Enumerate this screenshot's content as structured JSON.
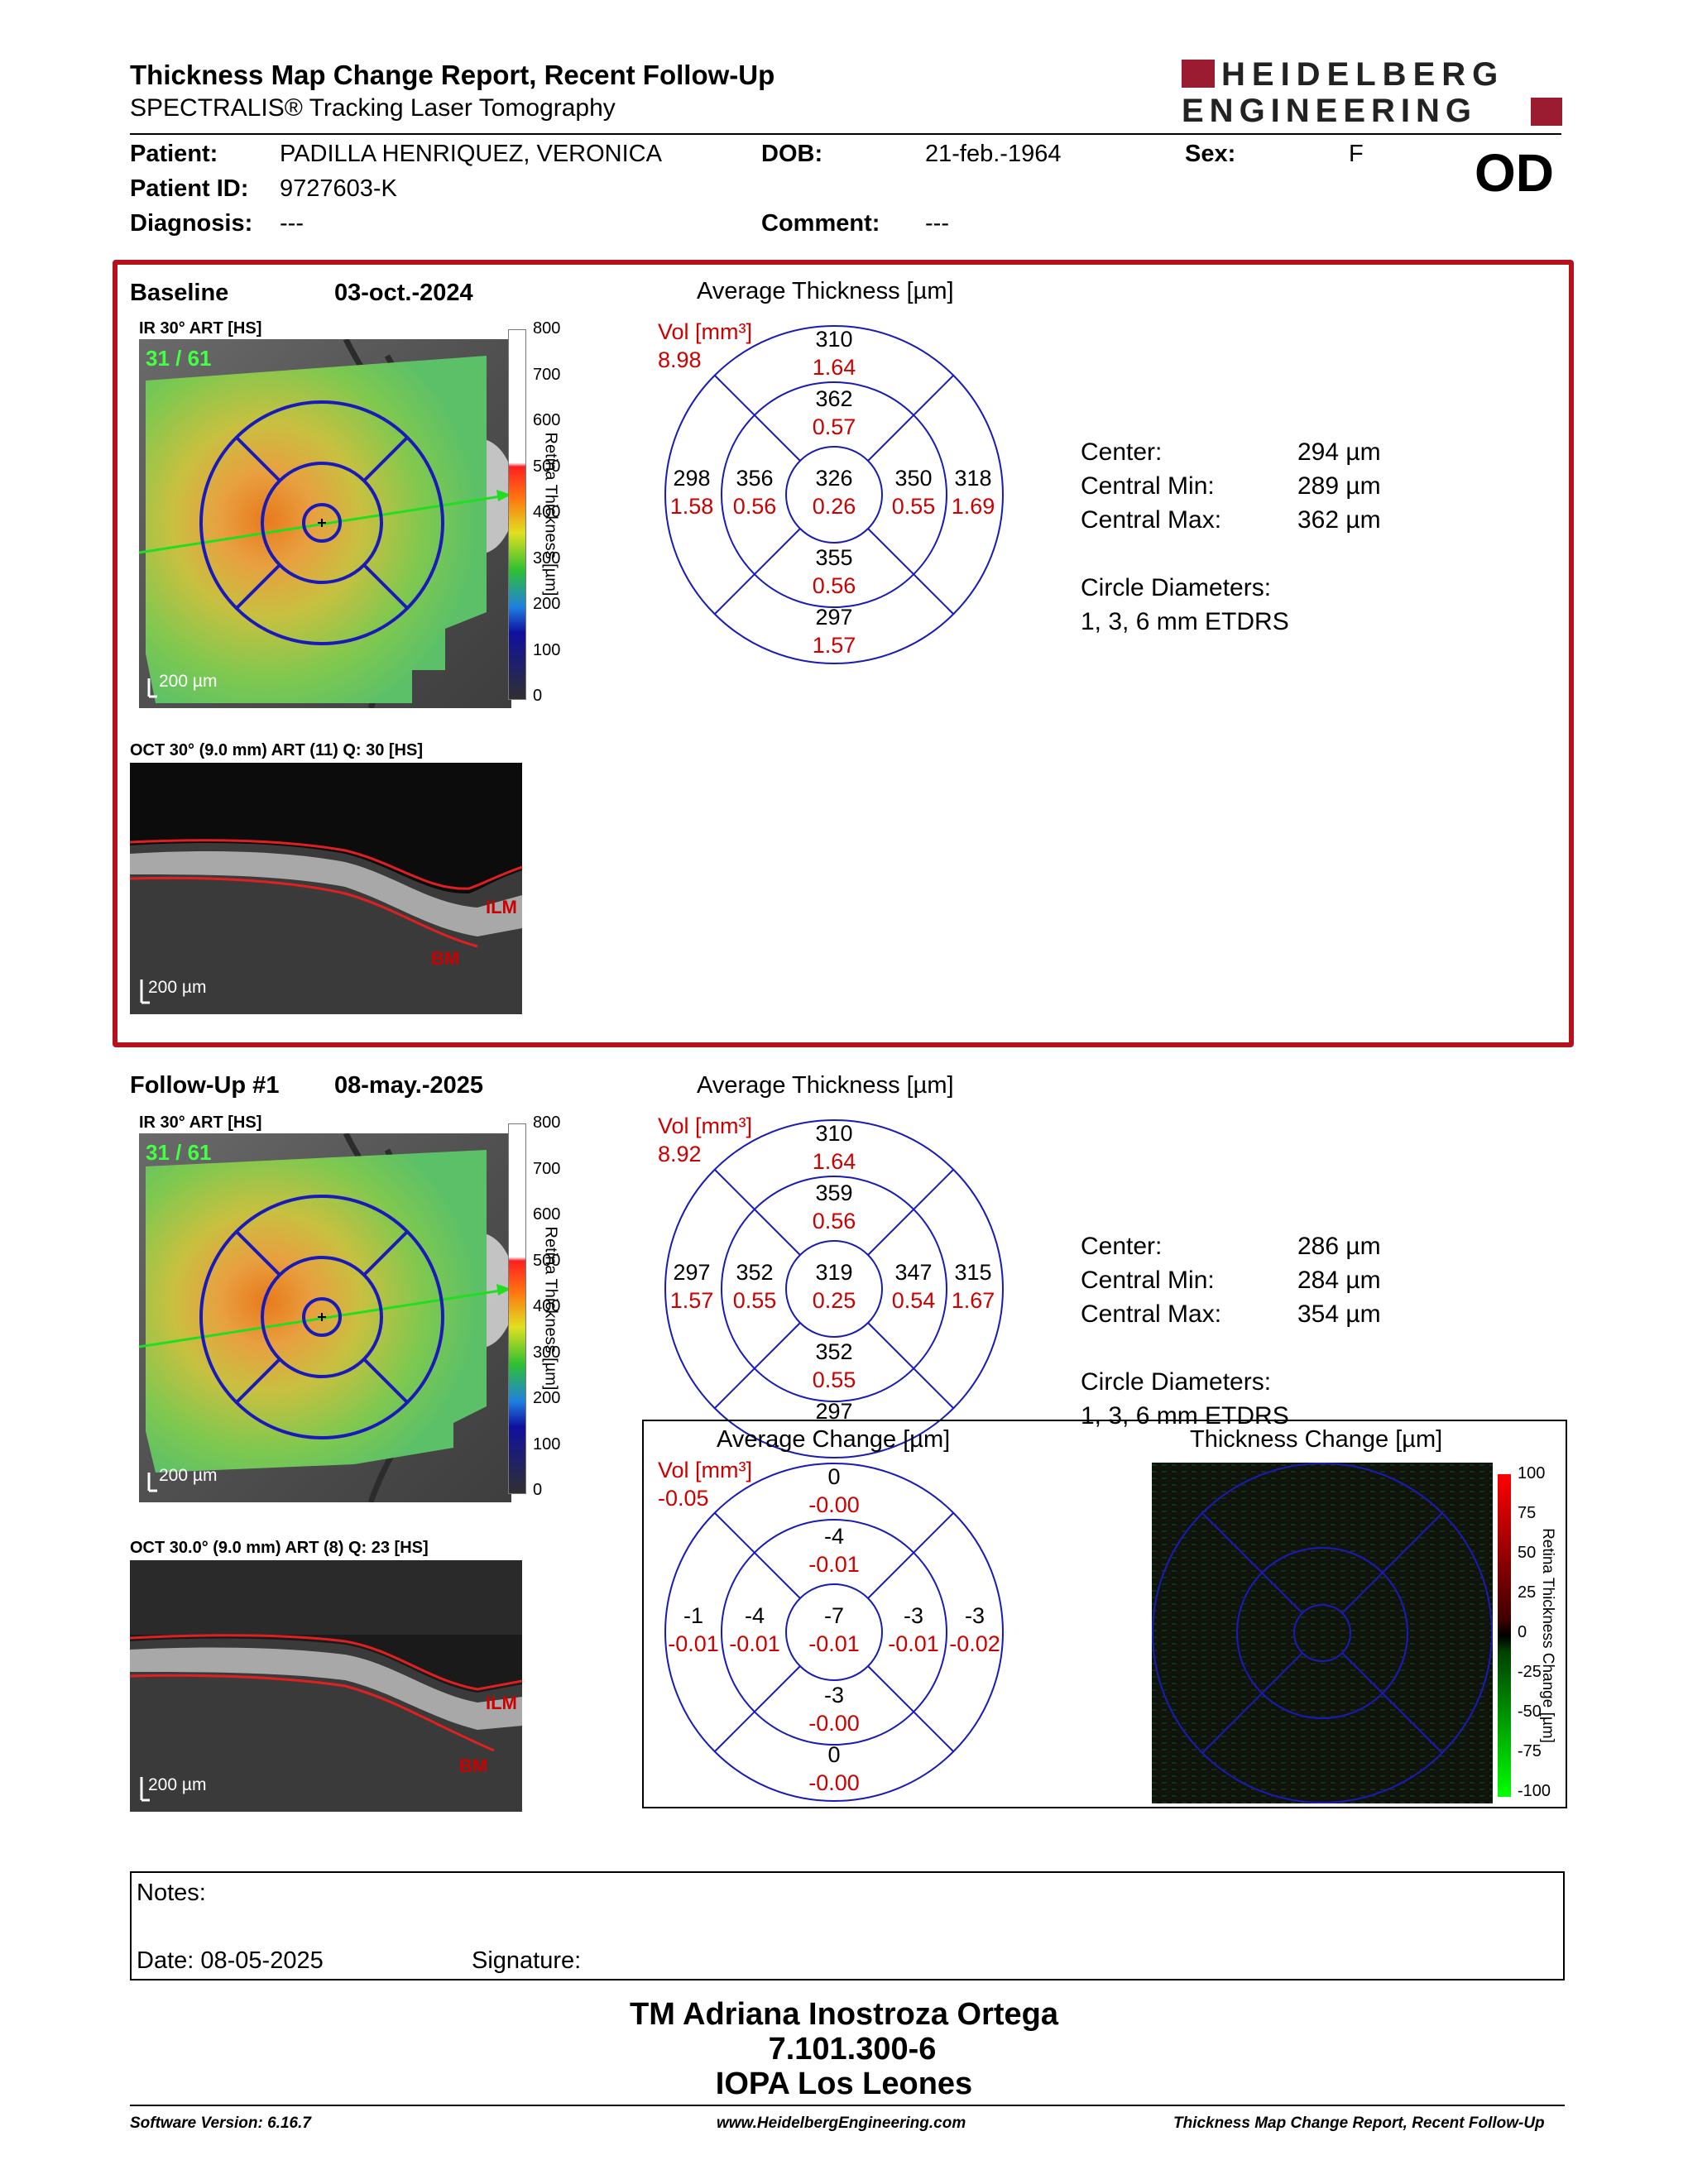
{
  "header": {
    "title": "Thickness Map Change Report, Recent Follow-Up",
    "subtitle": "SPECTRALIS® Tracking Laser Tomography",
    "logo_line1": "HEIDELBERG",
    "logo_line2": "ENGINEERING",
    "brand_color": "#9b1b30"
  },
  "patient": {
    "name_label": "Patient:",
    "name": "PADILLA HENRIQUEZ, VERONICA",
    "id_label": "Patient ID:",
    "id": "9727603-K",
    "diagnosis_label": "Diagnosis:",
    "diagnosis": "---",
    "dob_label": "DOB:",
    "dob": "21-feb.-1964",
    "sex_label": "Sex:",
    "sex": "F",
    "comment_label": "Comment:",
    "comment": "---",
    "eye": "OD"
  },
  "baseline": {
    "label": "Baseline",
    "date": "03-oct.-2024",
    "ir_label": "IR 30° ART [HS]",
    "frame": "31 / 61",
    "scale": "200 µm",
    "oct_label": "OCT 30° (9.0 mm) ART (11) Q: 30 [HS]",
    "oct_scale": "200 µm",
    "ilm": "ILM",
    "bm": "BM",
    "colorbar_ticks": [
      "800",
      "700",
      "600",
      "500",
      "400",
      "300",
      "200",
      "100",
      "0"
    ],
    "colorbar_title": "Retina Thickness [µm]",
    "avg_title": "Average Thickness [µm]",
    "vol_label": "Vol [mm³]",
    "vol_total": "8.98",
    "sectors": {
      "outer_top": [
        "310",
        "1.64"
      ],
      "inner_top": [
        "362",
        "0.57"
      ],
      "outer_left": [
        "298",
        "1.58"
      ],
      "inner_left": [
        "356",
        "0.56"
      ],
      "center": [
        "326",
        "0.26"
      ],
      "inner_right": [
        "350",
        "0.55"
      ],
      "outer_right": [
        "318",
        "1.69"
      ],
      "inner_bottom": [
        "355",
        "0.56"
      ],
      "outer_bottom": [
        "297",
        "1.57"
      ]
    },
    "stats": [
      {
        "label": "Center:",
        "value": "294 µm"
      },
      {
        "label": "Central Min:",
        "value": "289 µm"
      },
      {
        "label": "Central Max:",
        "value": "362 µm"
      }
    ],
    "circle_title": "Circle Diameters:",
    "circle_value": "1, 3, 6 mm ETDRS"
  },
  "followup": {
    "label": "Follow-Up #1",
    "date": "08-may.-2025",
    "ir_label": "IR 30° ART [HS]",
    "frame": "31 / 61",
    "scale": "200 µm",
    "oct_label": "OCT 30.0° (9.0 mm) ART (8) Q: 23 [HS]",
    "oct_scale": "200 µm",
    "ilm": "ILM",
    "bm": "BM",
    "colorbar_ticks": [
      "800",
      "700",
      "600",
      "500",
      "400",
      "300",
      "200",
      "100",
      "0"
    ],
    "colorbar_title": "Retina Thickness [µm]",
    "avg_title": "Average Thickness [µm]",
    "vol_label": "Vol [mm³]",
    "vol_total": "8.92",
    "sectors": {
      "outer_top": [
        "310",
        "1.64"
      ],
      "inner_top": [
        "359",
        "0.56"
      ],
      "outer_left": [
        "297",
        "1.57"
      ],
      "inner_left": [
        "352",
        "0.55"
      ],
      "center": [
        "319",
        "0.25"
      ],
      "inner_right": [
        "347",
        "0.54"
      ],
      "outer_right": [
        "315",
        "1.67"
      ],
      "inner_bottom": [
        "352",
        "0.55"
      ],
      "outer_bottom": [
        "297",
        ""
      ]
    },
    "stats": [
      {
        "label": "Center:",
        "value": "286 µm"
      },
      {
        "label": "Central Min:",
        "value": "284 µm"
      },
      {
        "label": "Central Max:",
        "value": "354 µm"
      }
    ],
    "circle_title": "Circle Diameters:",
    "circle_value": "1, 3, 6 mm ETDRS"
  },
  "change": {
    "avg_title": "Average Change [µm]",
    "vol_label": "Vol [mm³]",
    "vol_total": "-0.05",
    "sectors": {
      "outer_top": [
        "0",
        "-0.00"
      ],
      "inner_top": [
        "-4",
        "-0.01"
      ],
      "outer_left": [
        "-1",
        "-0.01"
      ],
      "inner_left": [
        "-4",
        "-0.01"
      ],
      "center": [
        "-7",
        "-0.01"
      ],
      "inner_right": [
        "-3",
        "-0.01"
      ],
      "outer_right": [
        "-3",
        "-0.02"
      ],
      "inner_bottom": [
        "-3",
        "-0.00"
      ],
      "outer_bottom": [
        "0",
        "-0.00"
      ]
    },
    "map_title": "Thickness Change [µm]",
    "colorbar_ticks": [
      "100",
      "75",
      "50",
      "25",
      "0",
      "-25",
      "-50",
      "-75",
      "-100"
    ],
    "colorbar_title": "Retina Thickness Change [µm]"
  },
  "notes": {
    "notes_label": "Notes:",
    "date_label": "Date: 08-05-2025",
    "signature_label": "Signature:"
  },
  "signature_block": {
    "line1": "TM Adriana Inostroza Ortega",
    "line2": "7.101.300-6",
    "line3": "IOPA Los Leones"
  },
  "footer": {
    "software": "Software Version: 6.16.7",
    "website": "www.HeidelbergEngineering.com",
    "report": "Thickness Map Change Report, Recent Follow-Up"
  }
}
